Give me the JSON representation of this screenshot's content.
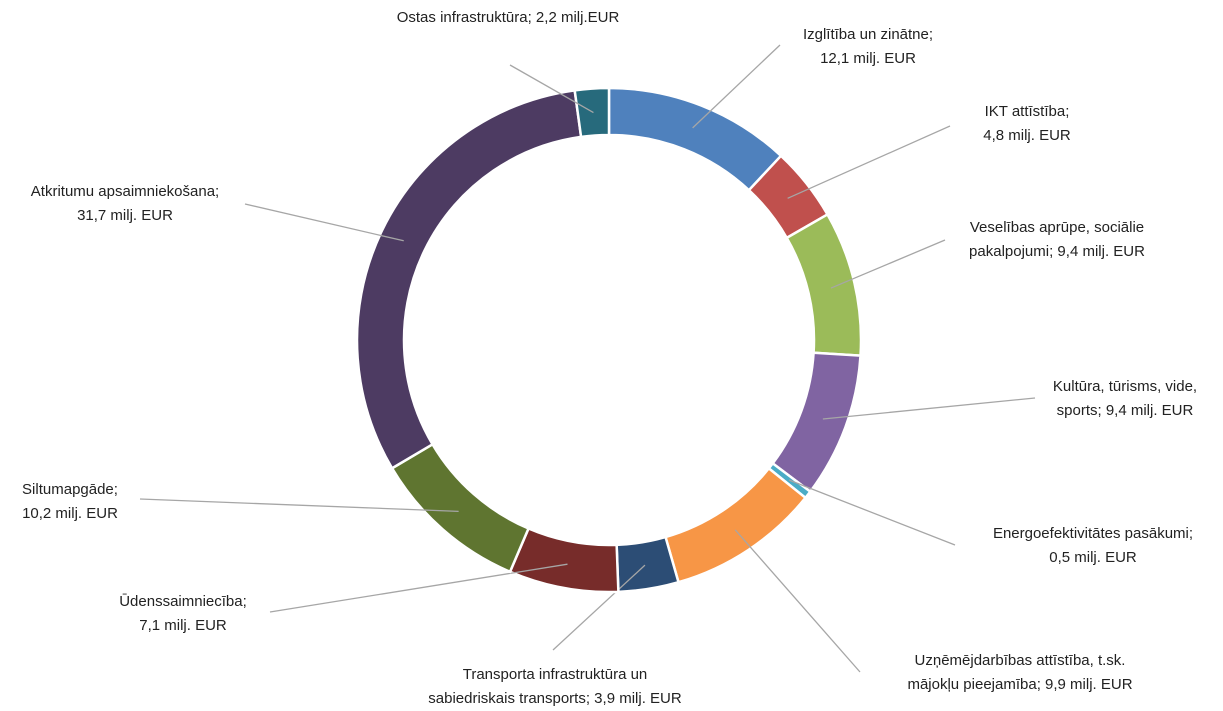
{
  "chart_data": {
    "type": "donut",
    "values": [
      12.1,
      4.8,
      9.4,
      9.4,
      0.5,
      9.9,
      3.9,
      7.1,
      10.2,
      31.7,
      2.2
    ],
    "value_labels": [
      [
        "Izglītība un zinātne;",
        "12,1 milj. EUR"
      ],
      [
        "IKT attīstība;",
        "4,8 milj. EUR"
      ],
      [
        "Veselības aprūpe, sociālie",
        "pakalpojumi; 9,4 milj. EUR"
      ],
      [
        "Kultūra, tūrisms, vide,",
        "sports; 9,4 milj. EUR"
      ],
      [
        "Energoefektivitātes pasākumi;",
        "0,5 milj. EUR"
      ],
      [
        "Uzņēmējdarbības attīstība, t.sk.",
        "mājokļu pieejamība; 9,9 milj. EUR"
      ],
      [
        "Transporta infrastruktūra un",
        "sabiedriskais transports; 3,9 milj. EUR"
      ],
      [
        "Ūdenssaimniecība;",
        "7,1 milj. EUR"
      ],
      [
        "Siltumapgāde;",
        "10,2 milj. EUR"
      ],
      [
        "Atkritumu apsaimniekošana;",
        "31,7 milj. EUR"
      ],
      [
        "Ostas infrastruktūra; 2,2 milj.EUR"
      ]
    ],
    "colors": [
      "#4f81bd",
      "#c0504d",
      "#9bbb59",
      "#8064a2",
      "#4bacc6",
      "#f79646",
      "#2c4d75",
      "#772c2a",
      "#5f7530",
      "#4d3b62",
      "#276a7c"
    ]
  }
}
